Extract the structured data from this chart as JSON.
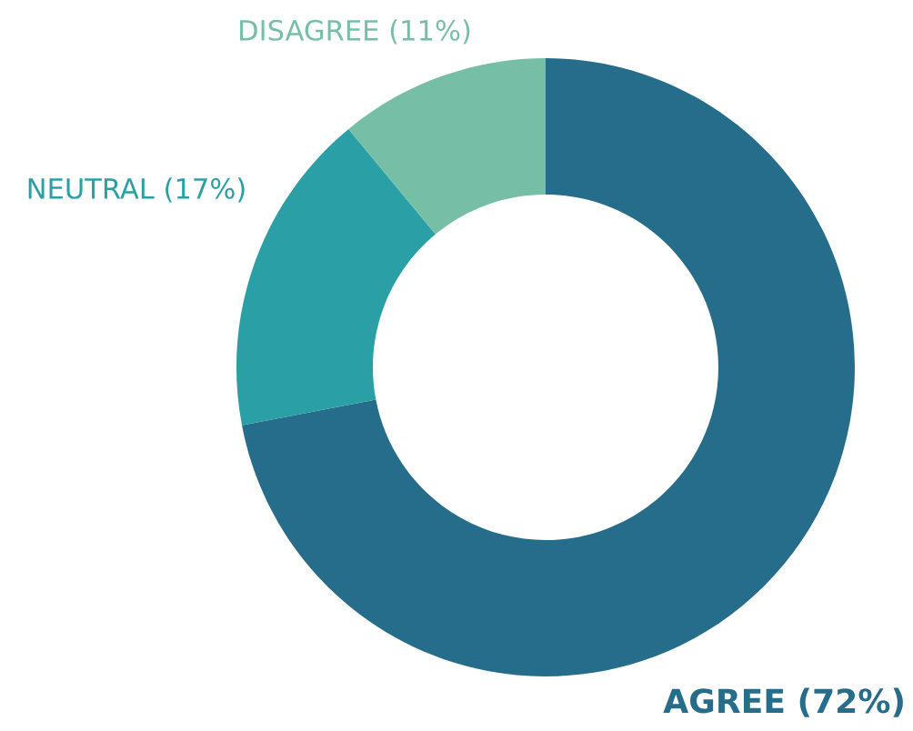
{
  "chart_data": {
    "type": "donut",
    "categories": [
      "AGREE (72%)",
      "NEUTRAL (17%)",
      "DISAGREE (11%)"
    ],
    "values": [
      72,
      17,
      11
    ],
    "colors": [
      "#256d8a",
      "#2aa0a6",
      "#76bfa6"
    ]
  }
}
